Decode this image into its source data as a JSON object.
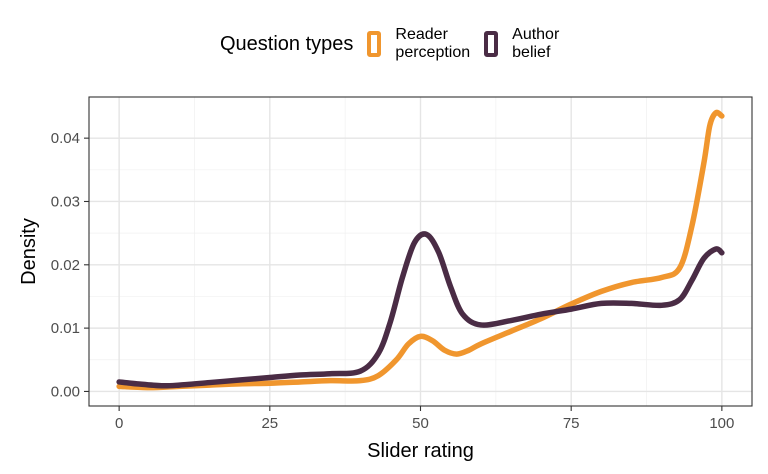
{
  "chart_data": {
    "type": "line",
    "xlabel": "Slider rating",
    "ylabel": "Density",
    "xlim": [
      -5,
      105
    ],
    "ylim": [
      -0.0023,
      0.0465
    ],
    "x_ticks": [
      0,
      25,
      50,
      75,
      100
    ],
    "x_tick_labels": [
      "0",
      "25",
      "50",
      "75",
      "100"
    ],
    "y_ticks": [
      0.0,
      0.01,
      0.02,
      0.03,
      0.04
    ],
    "y_tick_labels": [
      "0.00",
      "0.01",
      "0.02",
      "0.03",
      "0.04"
    ],
    "grid": true,
    "legend": {
      "title": "Question types",
      "position": "top"
    },
    "series": [
      {
        "name": "Reader\nperception",
        "color": "#F0962E",
        "x": [
          0,
          5,
          10,
          15,
          20,
          25,
          30,
          35,
          40,
          43,
          46,
          48,
          50,
          52,
          54,
          56,
          58,
          60,
          65,
          70,
          75,
          80,
          85,
          90,
          93,
          95,
          97,
          98,
          99,
          100
        ],
        "y": [
          0.0008,
          0.0006,
          0.0008,
          0.001,
          0.0012,
          0.0013,
          0.0015,
          0.0017,
          0.0017,
          0.0025,
          0.005,
          0.0075,
          0.0087,
          0.008,
          0.0065,
          0.0059,
          0.0065,
          0.0075,
          0.0095,
          0.0115,
          0.0138,
          0.0158,
          0.0172,
          0.018,
          0.0195,
          0.026,
          0.036,
          0.042,
          0.044,
          0.0435
        ]
      },
      {
        "name": "Author\nbelief",
        "color": "#4A2C45",
        "x": [
          0,
          3,
          7,
          10,
          15,
          20,
          25,
          30,
          35,
          40,
          43,
          45,
          47,
          49,
          51,
          53,
          55,
          57,
          60,
          65,
          70,
          75,
          80,
          85,
          90,
          93,
          95,
          97,
          99,
          100
        ],
        "y": [
          0.0015,
          0.0012,
          0.0009,
          0.001,
          0.0014,
          0.0018,
          0.0022,
          0.0026,
          0.0028,
          0.0032,
          0.006,
          0.011,
          0.018,
          0.0235,
          0.0248,
          0.022,
          0.0165,
          0.0122,
          0.0105,
          0.0112,
          0.0122,
          0.013,
          0.0139,
          0.0139,
          0.0136,
          0.0145,
          0.0175,
          0.021,
          0.0225,
          0.0219
        ]
      }
    ]
  }
}
